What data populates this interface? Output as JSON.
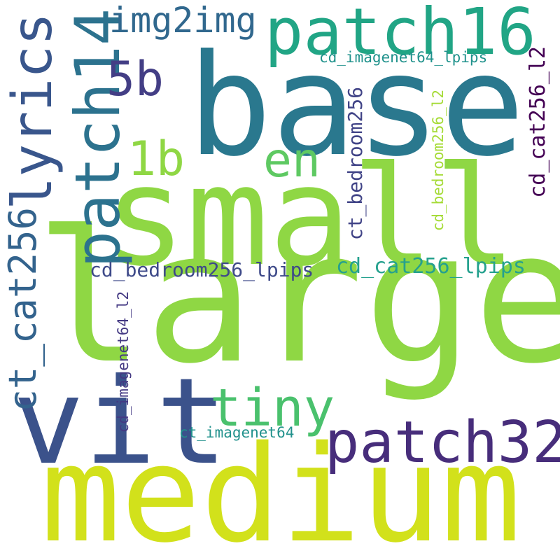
{
  "words": {
    "medium": {
      "text": "medium",
      "color": "#d2e11b"
    },
    "large": {
      "text": "large",
      "color": "#8fd744"
    },
    "small": {
      "text": "small",
      "color": "#8fd744"
    },
    "base": {
      "text": "base",
      "color": "#2a788e"
    },
    "vit": {
      "text": "vit",
      "color": "#3b528b"
    },
    "patch16": {
      "text": "patch16",
      "color": "#21a585"
    },
    "patch32": {
      "text": "patch32",
      "color": "#472d7b"
    },
    "patch14": {
      "text": "patch14",
      "color": "#2c728e"
    },
    "lyrics": {
      "text": "lyrics",
      "color": "#39568c"
    },
    "ct_cat256": {
      "text": "ct_cat256",
      "color": "#33638d"
    },
    "tiny": {
      "text": "tiny",
      "color": "#4ac16d"
    },
    "img2img": {
      "text": "img2img",
      "color": "#31688e"
    },
    "5b": {
      "text": "5b",
      "color": "#433e85"
    },
    "1b": {
      "text": "1b",
      "color": "#8fd744"
    },
    "en": {
      "text": "en",
      "color": "#5ec962"
    },
    "cd_cat256_lpips": {
      "text": "cd_cat256_lpips",
      "color": "#25a18e"
    },
    "cd_bedroom256_lpips": {
      "text": "cd_bedroom256_lpips",
      "color": "#3e4a89"
    },
    "cd_imagenet64_lpips": {
      "text": "cd_imagenet64_lpips",
      "color": "#20928c"
    },
    "ct_imagenet64": {
      "text": "ct_imagenet64",
      "color": "#21918c"
    },
    "cd_imagenet64_l2": {
      "text": "cd_imagenet64_l2",
      "color": "#443983"
    },
    "ct_bedroom256": {
      "text": "ct_bedroom256",
      "color": "#414487"
    },
    "cd_bedroom256_l2": {
      "text": "cd_bedroom256_l2",
      "color": "#a5db36"
    },
    "cd_cat256_l2": {
      "text": "cd_cat256_l2",
      "color": "#440154"
    }
  }
}
